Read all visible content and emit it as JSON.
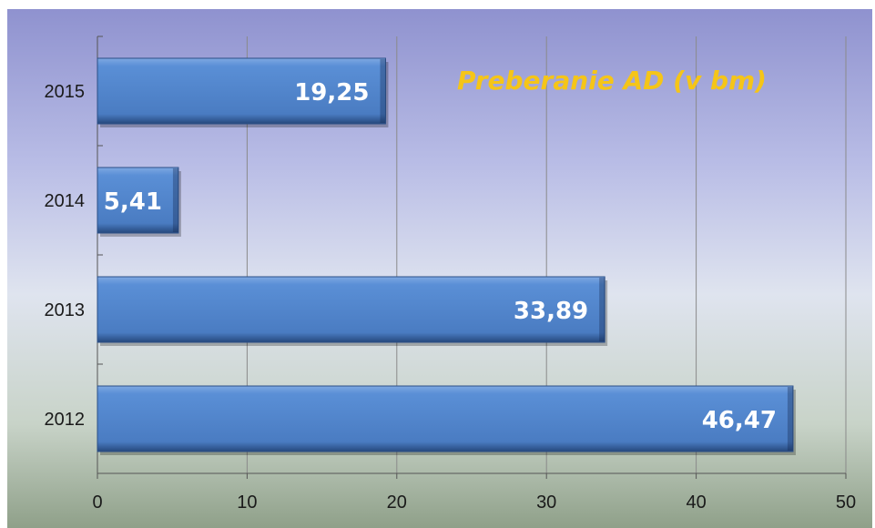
{
  "chart_data": {
    "type": "bar",
    "orientation": "horizontal",
    "title": "Preberanie  AD (v bm)",
    "categories": [
      "2012",
      "2013",
      "2014",
      "2015"
    ],
    "values": [
      46.47,
      33.89,
      5.41,
      19.25
    ],
    "value_labels": [
      "46,47",
      "33,89",
      "5,41",
      "19,25"
    ],
    "xlim": [
      0,
      50
    ],
    "x_ticks": [
      0,
      10,
      20,
      30,
      40,
      50
    ],
    "xlabel": "",
    "ylabel": "",
    "grid": true,
    "legend": "none"
  },
  "colors": {
    "bar_fill": "#4f81c7",
    "bar_edge": "#2b4f86",
    "title": "#f5c518",
    "grid": "#8a8a8a"
  }
}
